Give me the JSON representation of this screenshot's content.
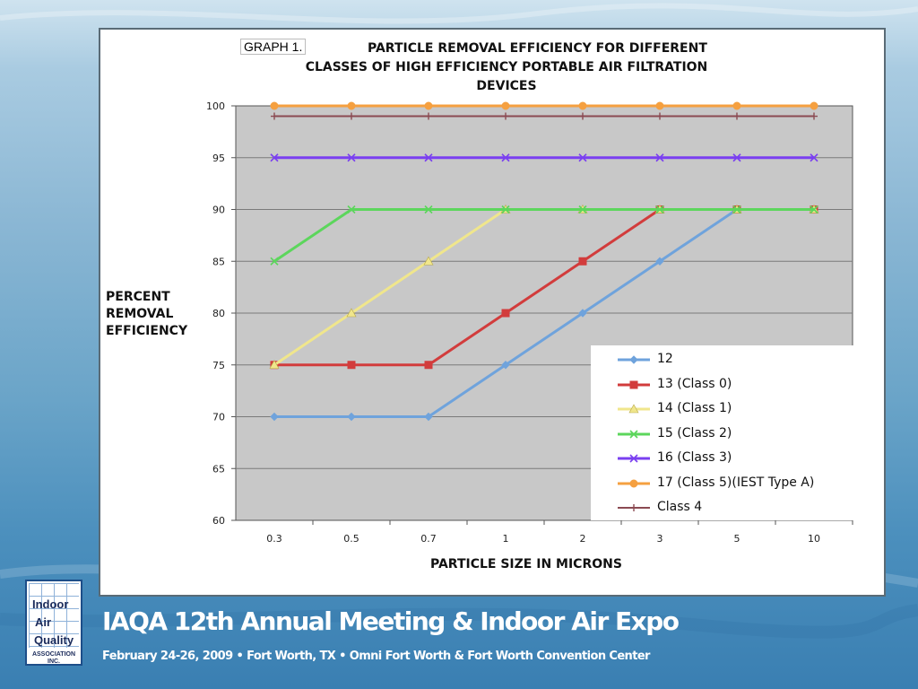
{
  "graph_prefix": "GRAPH 1.",
  "chart_data": {
    "type": "line",
    "title": "PARTICLE REMOVAL EFFICIENCY FOR DIFFERENT CLASSES OF HIGH EFFICIENCY PORTABLE AIR FILTRATION DEVICES",
    "title_lines": [
      "PARTICLE REMOVAL EFFICIENCY FOR DIFFERENT",
      "CLASSES OF HIGH EFFICIENCY PORTABLE AIR FILTRATION",
      "DEVICES"
    ],
    "xlabel": "PARTICLE SIZE IN MICRONS",
    "ylabel": "PERCENT REMOVAL EFFICIENCY",
    "ylabel_lines": [
      "PERCENT",
      "REMOVAL",
      "EFFICIENCY"
    ],
    "categories": [
      "0.3",
      "0.5",
      "0.7",
      "1",
      "2",
      "3",
      "5",
      "10"
    ],
    "ylim": [
      60,
      100
    ],
    "yticks": [
      60,
      65,
      70,
      75,
      80,
      85,
      90,
      95,
      100
    ],
    "grid": true,
    "plot_background": "#c8c8c8",
    "legend_position": "bottom-right",
    "series": [
      {
        "name": "12",
        "color": "#6fa3dc",
        "marker": "diamond",
        "values": [
          70,
          70,
          70,
          75,
          80,
          85,
          90,
          90
        ]
      },
      {
        "name": "13 (Class 0)",
        "color": "#d23c3c",
        "marker": "square",
        "values": [
          75,
          75,
          75,
          80,
          85,
          90,
          90,
          90
        ]
      },
      {
        "name": "14 (Class 1)",
        "color": "#f0e68c",
        "marker": "triangle",
        "values": [
          75,
          80,
          85,
          90,
          90,
          90,
          90,
          90
        ]
      },
      {
        "name": "15 (Class 2)",
        "color": "#5cd65c",
        "marker": "x",
        "values": [
          85,
          90,
          90,
          90,
          90,
          90,
          90,
          90
        ]
      },
      {
        "name": "16 (Class 3)",
        "color": "#7a3ff0",
        "marker": "x",
        "values": [
          95,
          95,
          95,
          95,
          95,
          95,
          95,
          95
        ]
      },
      {
        "name": "17 (Class 5)(IEST Type A)",
        "color": "#f5a040",
        "marker": "circle",
        "values": [
          100,
          100,
          100,
          100,
          100,
          100,
          100,
          100
        ]
      },
      {
        "name": "Class 4",
        "color": "#8b4a52",
        "marker": "plus",
        "values": [
          99,
          99,
          99,
          99,
          99,
          99,
          99,
          99
        ]
      }
    ]
  },
  "footer": {
    "title": "IAQA 12th Annual Meeting & Indoor Air Expo",
    "subtitle": "February 24-26, 2009 • Fort Worth, TX • Omni Fort Worth & Fort Worth Convention Center",
    "logo": {
      "words": [
        "Indoor",
        "Air",
        "Quality"
      ],
      "association": [
        "ASSOCIATION",
        "INC."
      ]
    }
  }
}
